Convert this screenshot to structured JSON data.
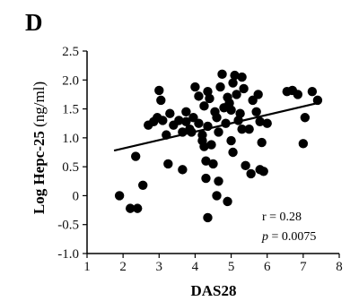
{
  "panel_label": "D",
  "chart_data": {
    "type": "scatter",
    "xlabel": "DAS28",
    "ylabel_bold": "Log Hepc-25",
    "ylabel_unit": " (ng/ml)",
    "xlim": [
      1,
      8
    ],
    "ylim": [
      -1.0,
      2.5
    ],
    "x_ticks": [
      1,
      2,
      3,
      4,
      5,
      6,
      7,
      8
    ],
    "y_ticks": [
      -1.0,
      -0.5,
      0,
      0.5,
      1.0,
      1.5,
      2.0,
      2.5
    ],
    "y_tick_labels": [
      "-1.0",
      "-0.5",
      "0",
      "0.5",
      "1.0",
      "1.5",
      "2.0",
      "2.5"
    ],
    "grid": false,
    "regression_line": {
      "x": [
        1.75,
        7.4
      ],
      "y": [
        0.78,
        1.6
      ]
    },
    "annotations": {
      "r": "r = 0.28",
      "p_symbol": "p",
      "p_value": " = 0.0075"
    },
    "points": [
      [
        1.9,
        0.0
      ],
      [
        2.2,
        -0.22
      ],
      [
        2.4,
        -0.22
      ],
      [
        2.35,
        0.68
      ],
      [
        2.55,
        0.18
      ],
      [
        2.7,
        1.22
      ],
      [
        2.85,
        1.28
      ],
      [
        2.95,
        1.35
      ],
      [
        3.0,
        1.82
      ],
      [
        3.05,
        1.65
      ],
      [
        3.1,
        1.3
      ],
      [
        3.2,
        1.05
      ],
      [
        3.25,
        0.55
      ],
      [
        3.3,
        1.42
      ],
      [
        3.4,
        1.22
      ],
      [
        3.55,
        1.3
      ],
      [
        3.65,
        1.1
      ],
      [
        3.65,
        0.45
      ],
      [
        3.75,
        1.28
      ],
      [
        3.85,
        1.15
      ],
      [
        3.9,
        1.1
      ],
      [
        3.95,
        1.35
      ],
      [
        4.0,
        1.88
      ],
      [
        4.1,
        1.72
      ],
      [
        4.1,
        1.25
      ],
      [
        4.2,
        1.05
      ],
      [
        4.2,
        0.95
      ],
      [
        4.25,
        0.85
      ],
      [
        4.25,
        1.55
      ],
      [
        4.3,
        0.6
      ],
      [
        4.3,
        0.3
      ],
      [
        4.35,
        1.8
      ],
      [
        4.35,
        1.2
      ],
      [
        4.35,
        -0.38
      ],
      [
        4.4,
        1.68
      ],
      [
        4.45,
        0.88
      ],
      [
        4.5,
        0.55
      ],
      [
        4.55,
        1.45
      ],
      [
        4.6,
        1.35
      ],
      [
        4.65,
        1.1
      ],
      [
        4.6,
        0.0
      ],
      [
        4.65,
        0.25
      ],
      [
        4.7,
        1.88
      ],
      [
        4.75,
        2.1
      ],
      [
        4.8,
        1.52
      ],
      [
        4.85,
        1.25
      ],
      [
        4.9,
        1.7
      ],
      [
        4.95,
        1.6
      ],
      [
        5.0,
        1.48
      ],
      [
        5.0,
        0.95
      ],
      [
        5.05,
        0.75
      ],
      [
        5.05,
        1.95
      ],
      [
        5.1,
        2.08
      ],
      [
        5.15,
        1.75
      ],
      [
        5.2,
        1.3
      ],
      [
        5.25,
        1.42
      ],
      [
        5.3,
        2.05
      ],
      [
        5.3,
        1.15
      ],
      [
        5.35,
        1.85
      ],
      [
        5.4,
        0.52
      ],
      [
        5.5,
        1.15
      ],
      [
        5.6,
        1.65
      ],
      [
        5.7,
        1.45
      ],
      [
        5.75,
        1.75
      ],
      [
        5.8,
        1.28
      ],
      [
        5.8,
        0.45
      ],
      [
        5.85,
        0.92
      ],
      [
        5.9,
        0.42
      ],
      [
        6.0,
        1.25
      ],
      [
        6.55,
        1.8
      ],
      [
        6.7,
        1.82
      ],
      [
        6.85,
        1.75
      ],
      [
        7.0,
        0.9
      ],
      [
        7.05,
        1.35
      ],
      [
        7.25,
        1.8
      ],
      [
        7.4,
        1.65
      ],
      [
        4.9,
        -0.1
      ],
      [
        5.55,
        0.38
      ],
      [
        3.75,
        1.45
      ]
    ]
  }
}
